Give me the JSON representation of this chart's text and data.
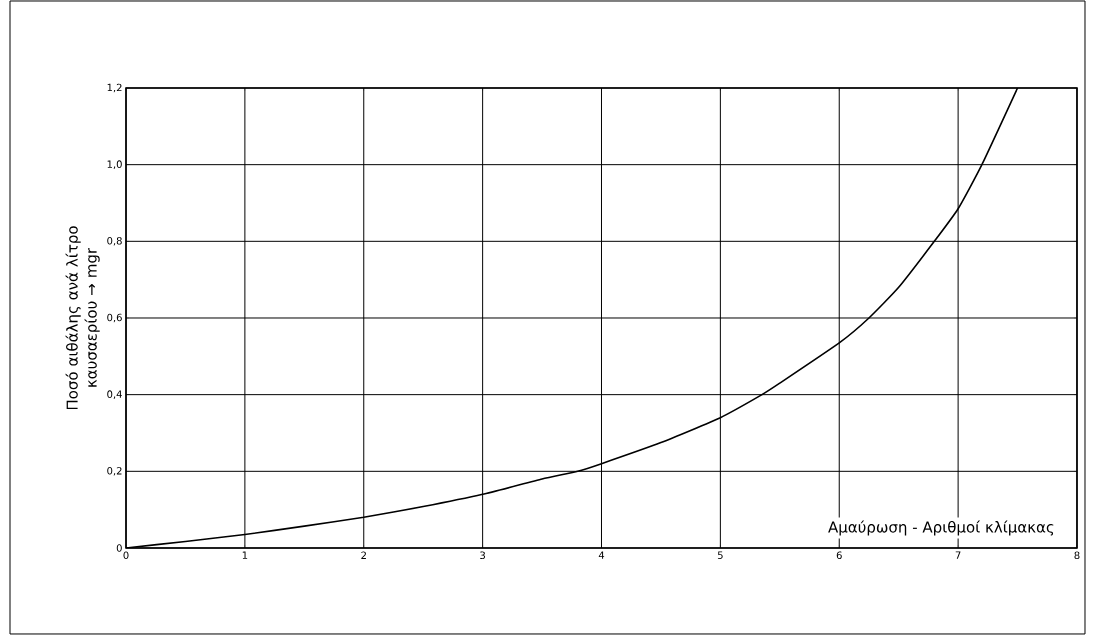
{
  "chart_data": {
    "type": "line",
    "xlabel": "Αμαύρωση - Αριθμοί κλίμακας",
    "ylabel": "Ποσό αιθάλης ανά λίτρο καυσαερίου → mgr",
    "x": [
      0,
      0.5,
      1,
      1.5,
      2,
      2.5,
      3,
      3.5,
      3.8,
      4,
      4.5,
      5,
      5.35,
      5.5,
      6,
      6.25,
      6.5,
      6.8,
      7,
      7.2,
      7.5
    ],
    "series": [
      {
        "color": "#000000",
        "values": [
          0,
          0.017,
          0.035,
          0.057,
          0.08,
          0.108,
          0.14,
          0.18,
          0.2,
          0.22,
          0.275,
          0.34,
          0.4,
          0.43,
          0.535,
          0.6,
          0.68,
          0.8,
          0.885,
          1.0,
          1.2
        ]
      }
    ],
    "xlim": [
      0,
      8
    ],
    "ylim": [
      0,
      1.2
    ],
    "xticks": [
      0,
      1,
      2,
      3,
      4,
      5,
      6,
      7,
      8
    ],
    "yticks": [
      0,
      {
        "value": 0.2,
        "label": "0,2"
      },
      {
        "value": 0.4,
        "label": "0,4"
      },
      {
        "value": 0.6,
        "label": "0,6"
      },
      {
        "value": 0.8,
        "label": "0,8"
      },
      {
        "value": 1.0,
        "label": "1,0"
      },
      {
        "value": 1.2,
        "label": "1,2"
      }
    ],
    "grid": true,
    "marker": "none",
    "line_style": "solid"
  }
}
